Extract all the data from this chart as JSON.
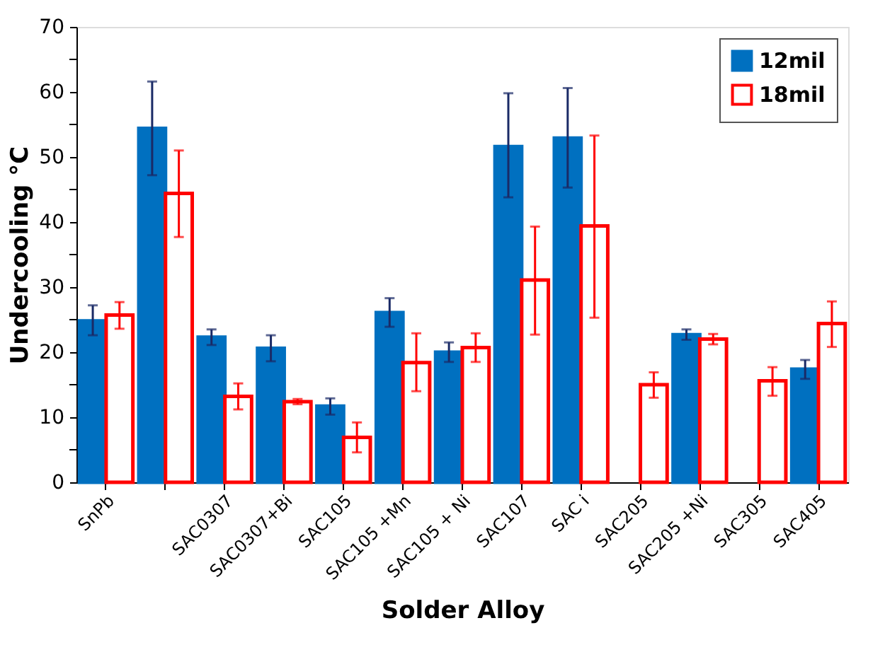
{
  "chart_data": {
    "type": "bar",
    "xlabel": "Solder Alloy",
    "ylabel": "Undercooling °C",
    "categories": [
      "SnPb",
      null,
      "SAC0307",
      "SAC0307+Bi",
      "SAC105",
      "SAC105 +Mn",
      "SAC105 + Ni",
      "SAC107",
      "SAC i",
      "SAC205",
      "SAC205 +Ni",
      "SAC305",
      "SAC405"
    ],
    "series": [
      {
        "name": "12mil",
        "color": "#0070c0",
        "values": [
          24.8,
          54.4,
          22.3,
          20.6,
          11.7,
          26.1,
          20.0,
          51.6,
          52.9,
          null,
          22.7,
          null,
          17.4
        ],
        "errors": [
          [
            22.6,
            27.2
          ],
          [
            47.2,
            61.6
          ],
          [
            21.1,
            23.5
          ],
          [
            18.6,
            22.6
          ],
          [
            10.4,
            12.9
          ],
          [
            23.9,
            28.3
          ],
          [
            18.5,
            21.5
          ],
          [
            43.8,
            59.8
          ],
          [
            45.3,
            60.6
          ],
          null,
          [
            21.9,
            23.5
          ],
          null,
          [
            15.9,
            18.8
          ]
        ]
      },
      {
        "name": "18mil",
        "color": "#ff0000",
        "values": [
          25.7,
          44.4,
          13.2,
          12.4,
          6.9,
          18.4,
          20.7,
          31.1,
          39.4,
          15.0,
          22.0,
          15.6,
          24.4
        ],
        "errors": [
          [
            23.6,
            27.7
          ],
          [
            37.7,
            51.0
          ],
          [
            11.2,
            15.2
          ],
          [
            12.0,
            12.8
          ],
          [
            4.6,
            9.2
          ],
          [
            14.0,
            22.9
          ],
          [
            18.5,
            22.9
          ],
          [
            22.7,
            39.3
          ],
          [
            25.3,
            53.3
          ],
          [
            13.0,
            16.9
          ],
          [
            21.2,
            22.8
          ],
          [
            13.3,
            17.7
          ],
          [
            20.8,
            27.8
          ]
        ]
      }
    ],
    "ylim": [
      0,
      70
    ],
    "yticks": [
      0,
      {
        "value": 5,
        "label": null
      },
      10,
      {
        "value": 15,
        "label": null
      },
      20,
      {
        "value": 25,
        "label": null
      },
      30,
      {
        "value": 35,
        "label": null
      },
      40,
      {
        "value": 45,
        "label": null
      },
      50,
      {
        "value": 55,
        "label": null
      },
      60,
      {
        "value": 65,
        "label": null
      },
      70
    ],
    "legend": "top right",
    "grid": false
  }
}
